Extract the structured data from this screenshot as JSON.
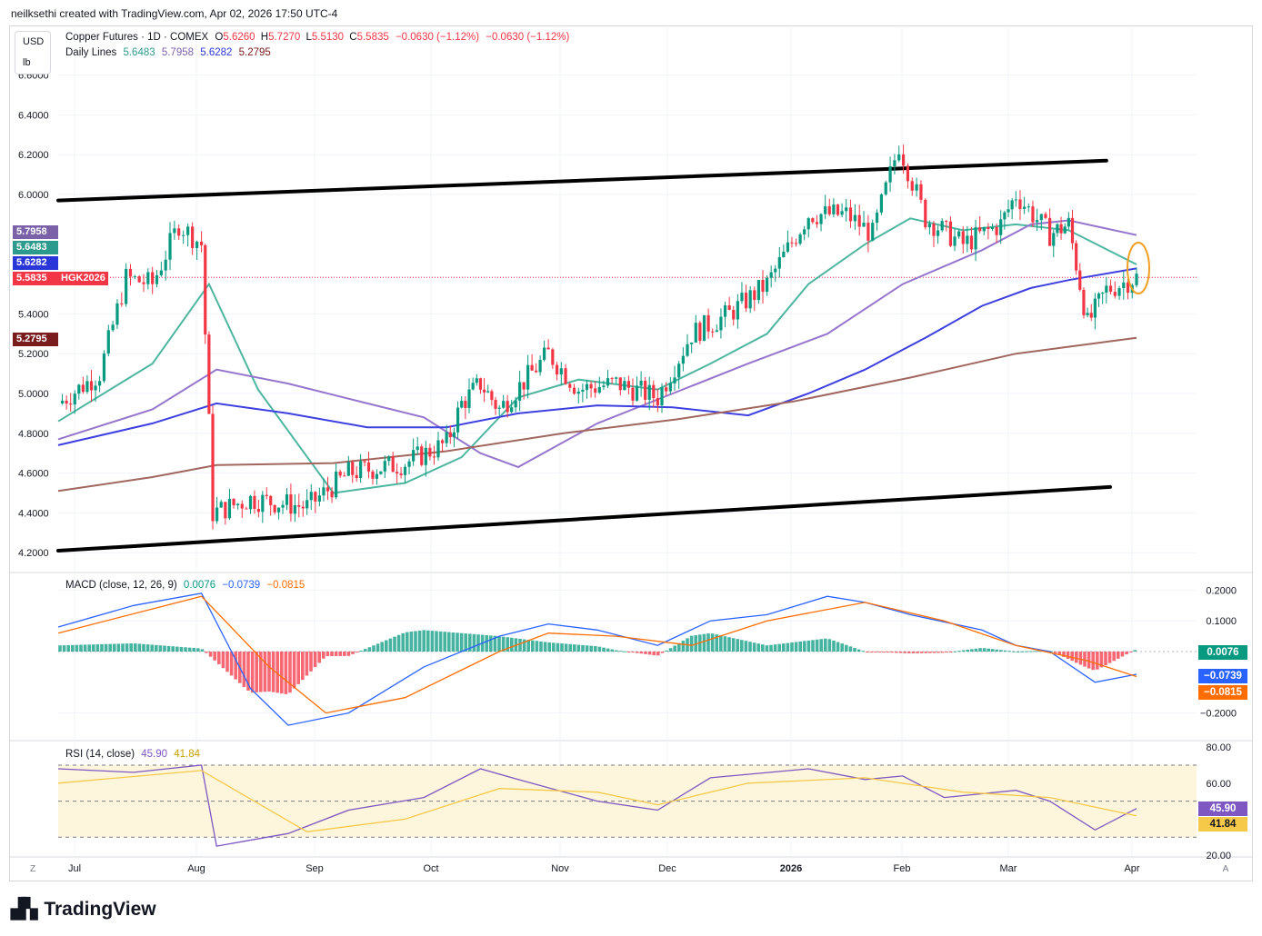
{
  "header": {
    "credit": "neilksethi created with TradingView.com, Apr 02, 2026 17:50 UTC-4"
  },
  "units": {
    "currency": "USD",
    "unit": "lb"
  },
  "legend": {
    "symbol": "Copper Futures · 1D · COMEX",
    "o_label": "O",
    "o": "5.6260",
    "h_label": "H",
    "h": "5.7270",
    "l_label": "L",
    "l": "5.5130",
    "c_label": "C",
    "c": "5.5835",
    "chg1": "−0.0630 (−1.12%)",
    "chg2": "−0.0630 (−1.12%)",
    "lines_label": "Daily Lines",
    "line_values": [
      "5.6483",
      "5.7958",
      "5.6282",
      "5.2795"
    ]
  },
  "price_labels_left": [
    {
      "value": "5.7958",
      "color": "#7b61a8"
    },
    {
      "value": "5.6483",
      "color": "#2c9a8c"
    },
    {
      "value": "5.6282",
      "color": "#2b36d9"
    },
    {
      "value": "5.5835",
      "color": "#f23645"
    },
    {
      "value": "5.2795",
      "color": "#7a1c1c"
    }
  ],
  "ticker_label": "HGK2026",
  "price_axis": [
    "6.6000",
    "6.4000",
    "6.2000",
    "6.0000",
    "5.4000",
    "5.2000",
    "5.0000",
    "4.8000",
    "4.6000",
    "4.4000",
    "4.2000"
  ],
  "time_axis": [
    "Jul",
    "Aug",
    "Sep",
    "Oct",
    "Nov",
    "Dec",
    "2026",
    "Feb",
    "Mar",
    "Apr"
  ],
  "macd": {
    "label": "MACD (close, 12, 26, 9)",
    "values": [
      "0.0076",
      "−0.0739",
      "−0.0815"
    ],
    "axis": [
      "0.2000",
      "0.1000",
      "−0.2000"
    ],
    "label_colors": [
      "#089981",
      "#2962ff",
      "#ff6d00"
    ]
  },
  "rsi": {
    "label": "RSI (14, close)",
    "values": [
      "45.90",
      "41.84"
    ],
    "axis": [
      "80.00",
      "60.00",
      "20.00"
    ],
    "label_colors": [
      "#7e57c2",
      "#f7c948"
    ]
  },
  "corner_labels": {
    "left": "Z",
    "right": "A"
  },
  "brand": "TradingView",
  "colors": {
    "up": "#089981",
    "down": "#f23645",
    "ma_fast": "#4db6a0",
    "ma_mid": "#9575cd",
    "ma_blue": "#3d3fe0",
    "ma_slow": "#a1665e",
    "channel": "#000000",
    "highlight": "#f0a020"
  },
  "chart_data": {
    "type": "candlestick",
    "title": "Copper Futures · 1D · COMEX",
    "x_range": [
      "2025-06-20",
      "2026-04-02"
    ],
    "ylim": [
      4.15,
      6.6
    ],
    "price_path": [
      [
        "2025-06-20",
        4.95
      ],
      [
        "2025-07-01",
        5.1
      ],
      [
        "2025-07-08",
        5.58
      ],
      [
        "2025-07-15",
        5.55
      ],
      [
        "2025-07-22",
        5.85
      ],
      [
        "2025-07-28",
        5.75
      ],
      [
        "2025-07-31",
        4.4
      ],
      [
        "2025-08-10",
        4.47
      ],
      [
        "2025-08-25",
        4.43
      ],
      [
        "2025-09-05",
        4.6
      ],
      [
        "2025-09-20",
        4.65
      ],
      [
        "2025-10-01",
        4.75
      ],
      [
        "2025-10-05",
        4.95
      ],
      [
        "2025-10-10",
        5.05
      ],
      [
        "2025-10-15",
        4.92
      ],
      [
        "2025-10-28",
        5.2
      ],
      [
        "2025-11-05",
        5.02
      ],
      [
        "2025-11-15",
        5.05
      ],
      [
        "2025-11-26",
        4.98
      ],
      [
        "2025-12-05",
        5.3
      ],
      [
        "2025-12-15",
        5.4
      ],
      [
        "2025-12-25",
        5.55
      ],
      [
        "2026-01-05",
        5.9
      ],
      [
        "2026-01-15",
        5.9
      ],
      [
        "2026-01-22",
        5.8
      ],
      [
        "2026-01-29",
        6.25
      ],
      [
        "2026-02-05",
        5.88
      ],
      [
        "2026-02-15",
        5.75
      ],
      [
        "2026-02-25",
        5.85
      ],
      [
        "2026-03-01",
        6.0
      ],
      [
        "2026-03-10",
        5.8
      ],
      [
        "2026-03-15",
        5.85
      ],
      [
        "2026-03-20",
        5.35
      ],
      [
        "2026-03-25",
        5.52
      ],
      [
        "2026-04-02",
        5.5835
      ]
    ],
    "moving_averages": [
      {
        "values": [
          [
            "2025-06-20",
            4.86
          ],
          [
            "2025-07-15",
            5.15
          ],
          [
            "2025-07-30",
            5.55
          ],
          [
            "2025-08-12",
            5.02
          ],
          [
            "2025-09-01",
            4.5
          ],
          [
            "2025-09-20",
            4.55
          ],
          [
            "2025-10-05",
            4.68
          ],
          [
            "2025-10-20",
            4.98
          ],
          [
            "2025-11-05",
            5.07
          ],
          [
            "2025-11-26",
            5.02
          ],
          [
            "2025-12-10",
            5.15
          ],
          [
            "2025-12-25",
            5.3
          ],
          [
            "2026-01-05",
            5.55
          ],
          [
            "2026-01-20",
            5.75
          ],
          [
            "2026-02-01",
            5.88
          ],
          [
            "2026-02-15",
            5.82
          ],
          [
            "2026-03-01",
            5.85
          ],
          [
            "2026-03-15",
            5.82
          ],
          [
            "2026-04-02",
            5.6483
          ]
        ]
      },
      {
        "values": [
          [
            "2025-06-20",
            4.77
          ],
          [
            "2025-07-15",
            4.92
          ],
          [
            "2025-08-01",
            5.12
          ],
          [
            "2025-08-20",
            5.05
          ],
          [
            "2025-09-10",
            4.95
          ],
          [
            "2025-09-25",
            4.88
          ],
          [
            "2025-10-10",
            4.7
          ],
          [
            "2025-10-20",
            4.63
          ],
          [
            "2025-11-10",
            4.85
          ],
          [
            "2025-11-30",
            5.0
          ],
          [
            "2025-12-20",
            5.15
          ],
          [
            "2026-01-10",
            5.3
          ],
          [
            "2026-01-30",
            5.55
          ],
          [
            "2026-02-20",
            5.72
          ],
          [
            "2026-03-05",
            5.85
          ],
          [
            "2026-03-15",
            5.87
          ],
          [
            "2026-04-02",
            5.7958
          ]
        ]
      },
      {
        "values": [
          [
            "2025-06-20",
            4.74
          ],
          [
            "2025-07-15",
            4.85
          ],
          [
            "2025-08-01",
            4.95
          ],
          [
            "2025-08-20",
            4.9
          ],
          [
            "2025-09-10",
            4.83
          ],
          [
            "2025-10-01",
            4.83
          ],
          [
            "2025-10-20",
            4.9
          ],
          [
            "2025-11-10",
            4.94
          ],
          [
            "2025-11-30",
            4.93
          ],
          [
            "2025-12-20",
            4.89
          ],
          [
            "2026-01-05",
            5.0
          ],
          [
            "2026-01-20",
            5.12
          ],
          [
            "2026-02-05",
            5.28
          ],
          [
            "2026-02-20",
            5.44
          ],
          [
            "2026-03-05",
            5.53
          ],
          [
            "2026-03-15",
            5.57
          ],
          [
            "2026-04-02",
            5.6282
          ]
        ]
      },
      {
        "values": [
          [
            "2025-06-20",
            4.51
          ],
          [
            "2025-07-15",
            4.58
          ],
          [
            "2025-08-01",
            4.64
          ],
          [
            "2025-09-01",
            4.65
          ],
          [
            "2025-10-01",
            4.71
          ],
          [
            "2025-11-01",
            4.8
          ],
          [
            "2025-12-01",
            4.87
          ],
          [
            "2026-01-01",
            4.96
          ],
          [
            "2026-02-01",
            5.08
          ],
          [
            "2026-03-01",
            5.2
          ],
          [
            "2026-04-02",
            5.2795
          ]
        ]
      }
    ],
    "channel_lines": [
      [
        [
          "2025-06-20",
          5.97
        ],
        [
          "2026-03-25",
          6.17
        ]
      ],
      [
        [
          "2025-06-20",
          4.21
        ],
        [
          "2026-03-26",
          4.53
        ]
      ]
    ],
    "macd_series": {
      "macd": [
        [
          "2025-06-20",
          0.08
        ],
        [
          "2025-07-10",
          0.15
        ],
        [
          "2025-07-28",
          0.19
        ],
        [
          "2025-08-10",
          -0.12
        ],
        [
          "2025-08-20",
          -0.24
        ],
        [
          "2025-09-05",
          -0.2
        ],
        [
          "2025-09-25",
          -0.05
        ],
        [
          "2025-10-15",
          0.05
        ],
        [
          "2025-10-28",
          0.09
        ],
        [
          "2025-11-10",
          0.07
        ],
        [
          "2025-11-26",
          0.02
        ],
        [
          "2025-12-10",
          0.1
        ],
        [
          "2025-12-25",
          0.12
        ],
        [
          "2026-01-10",
          0.18
        ],
        [
          "2026-01-20",
          0.16
        ],
        [
          "2026-02-01",
          0.12
        ],
        [
          "2026-02-20",
          0.07
        ],
        [
          "2026-03-01",
          0.02
        ],
        [
          "2026-03-10",
          0.0
        ],
        [
          "2026-03-22",
          -0.1
        ],
        [
          "2026-04-02",
          -0.0739
        ]
      ],
      "signal": [
        [
          "2025-06-20",
          0.06
        ],
        [
          "2025-07-28",
          0.18
        ],
        [
          "2025-08-15",
          -0.05
        ],
        [
          "2025-08-30",
          -0.2
        ],
        [
          "2025-09-20",
          -0.15
        ],
        [
          "2025-10-15",
          0.0
        ],
        [
          "2025-10-28",
          0.06
        ],
        [
          "2025-11-15",
          0.05
        ],
        [
          "2025-12-05",
          0.02
        ],
        [
          "2025-12-25",
          0.1
        ],
        [
          "2026-01-20",
          0.16
        ],
        [
          "2026-02-10",
          0.1
        ],
        [
          "2026-03-01",
          0.02
        ],
        [
          "2026-03-20",
          -0.03
        ],
        [
          "2026-04-02",
          -0.0815
        ]
      ],
      "histogram_last": 0.0076
    },
    "rsi_series": {
      "rsi": [
        [
          "2025-06-20",
          68
        ],
        [
          "2025-07-10",
          66
        ],
        [
          "2025-07-28",
          70
        ],
        [
          "2025-08-01",
          25
        ],
        [
          "2025-08-20",
          32
        ],
        [
          "2025-09-05",
          45
        ],
        [
          "2025-09-25",
          52
        ],
        [
          "2025-10-10",
          68
        ],
        [
          "2025-10-20",
          62
        ],
        [
          "2025-11-10",
          50
        ],
        [
          "2025-11-26",
          45
        ],
        [
          "2025-12-10",
          63
        ],
        [
          "2026-01-05",
          68
        ],
        [
          "2026-01-20",
          62
        ],
        [
          "2026-01-30",
          64
        ],
        [
          "2026-02-10",
          52
        ],
        [
          "2026-03-01",
          56
        ],
        [
          "2026-03-10",
          50
        ],
        [
          "2026-03-22",
          34
        ],
        [
          "2026-04-02",
          45.9
        ]
      ],
      "signal": [
        [
          "2025-06-20",
          60
        ],
        [
          "2025-07-28",
          67
        ],
        [
          "2025-08-25",
          33
        ],
        [
          "2025-09-20",
          40
        ],
        [
          "2025-10-15",
          57
        ],
        [
          "2025-11-10",
          55
        ],
        [
          "2025-11-26",
          48
        ],
        [
          "2025-12-20",
          60
        ],
        [
          "2026-01-20",
          63
        ],
        [
          "2026-02-15",
          55
        ],
        [
          "2026-03-10",
          52
        ],
        [
          "2026-04-02",
          41.84
        ]
      ],
      "levels": [
        70,
        50,
        30
      ]
    }
  }
}
